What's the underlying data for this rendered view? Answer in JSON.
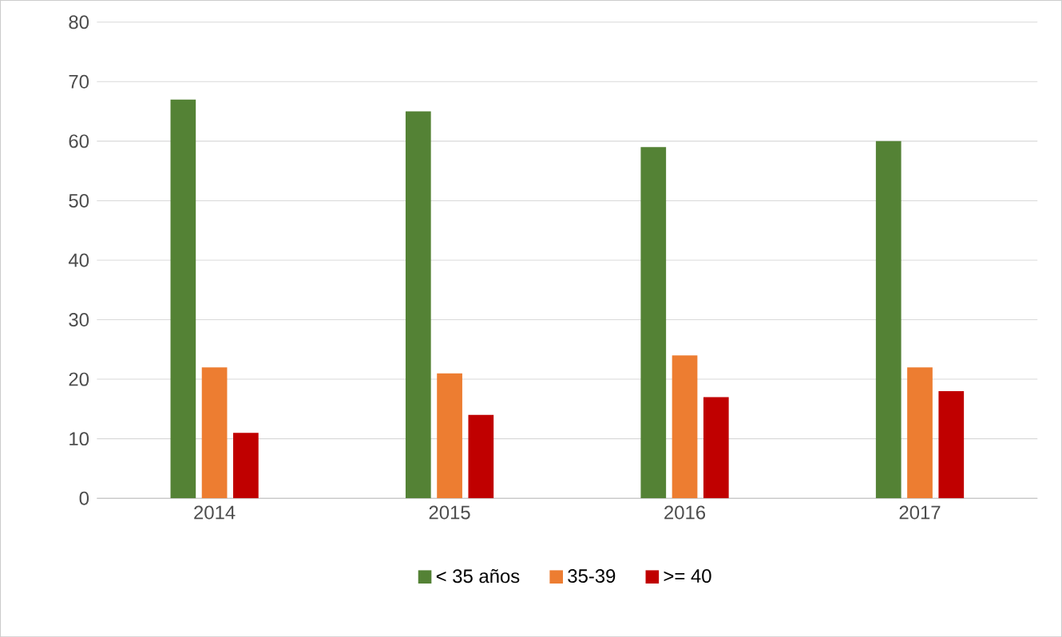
{
  "chart_data": {
    "type": "bar",
    "categories": [
      "2014",
      "2015",
      "2016",
      "2017"
    ],
    "series": [
      {
        "name": "< 35 años",
        "color": "#548235",
        "values": [
          67,
          65,
          59,
          60
        ]
      },
      {
        "name": "35-39",
        "color": "#ed7d31",
        "values": [
          22,
          21,
          24,
          22
        ]
      },
      {
        "name": ">= 40",
        "color": "#c00000",
        "values": [
          11,
          14,
          17,
          18
        ]
      }
    ],
    "ylim": [
      0,
      80
    ],
    "yticks": [
      0,
      10,
      20,
      30,
      40,
      50,
      60,
      70,
      80
    ],
    "grid": "y",
    "legend": "bottom"
  }
}
